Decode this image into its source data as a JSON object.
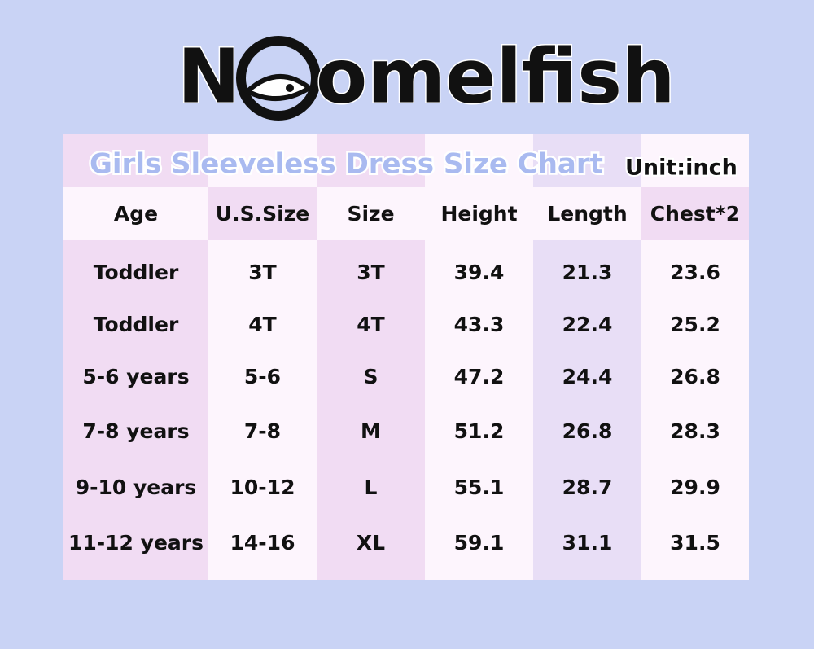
{
  "header": {
    "brand_start": "N",
    "brand_end": "omelfish"
  },
  "table": {
    "title": "Girls Sleeveless Dress Size Chart",
    "unit": "Unit:inch",
    "columns": [
      "Age",
      "U.S.Size",
      "Size",
      "Height",
      "Length",
      "Chest*2"
    ],
    "rows": [
      [
        "Toddler",
        "3T",
        "3T",
        "39.4",
        "21.3",
        "23.6"
      ],
      [
        "Toddler",
        "4T",
        "4T",
        "43.3",
        "22.4",
        "25.2"
      ],
      [
        "5-6 years",
        "5-6",
        "S",
        "47.2",
        "24.4",
        "26.8"
      ],
      [
        "7-8 years",
        "7-8",
        "M",
        "51.2",
        "26.8",
        "28.3"
      ],
      [
        "9-10 years",
        "10-12",
        "L",
        "55.1",
        "28.7",
        "29.9"
      ],
      [
        "11-12 years",
        "14-16",
        "XL",
        "59.1",
        "31.1",
        "31.5"
      ]
    ]
  }
}
